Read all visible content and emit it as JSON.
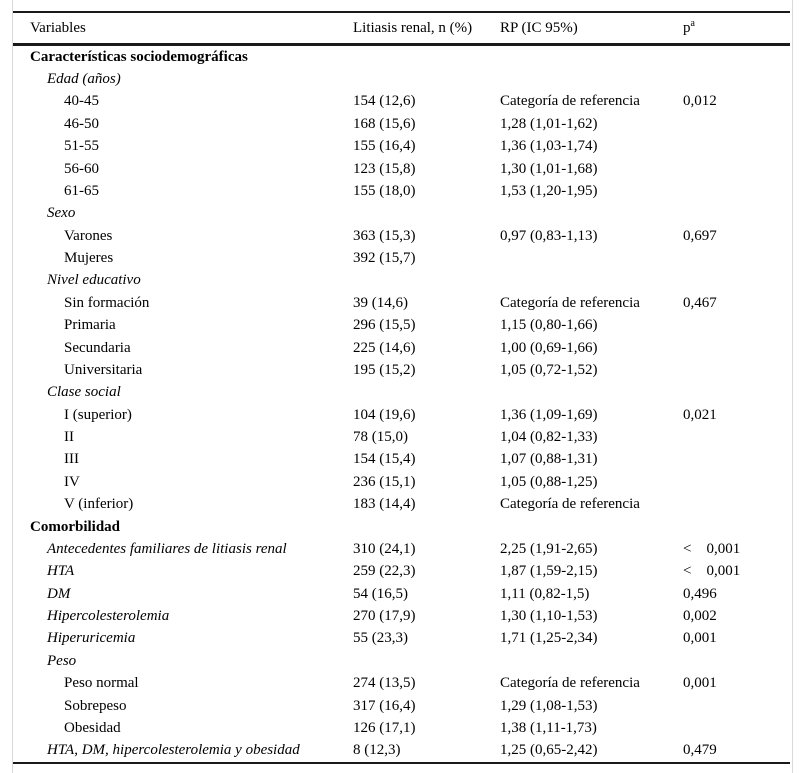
{
  "colors": {
    "text": "#000000",
    "rule": "#1a1a1a",
    "side_border": "#d9d9d9",
    "background": "#ffffff"
  },
  "table": {
    "columns": [
      "Variables",
      "Litiasis renal, n (%)",
      "RP (IC 95%)",
      "p"
    ],
    "p_superscript": "a",
    "reference_label": "Categoría de referencia",
    "rows": [
      {
        "label": "Características sociodemográficas",
        "indent": 0,
        "emphasis": "bold",
        "n": "",
        "rp": "",
        "p": ""
      },
      {
        "label": "Edad (años)",
        "indent": 1,
        "emphasis": "italic",
        "n": "",
        "rp": "",
        "p": ""
      },
      {
        "label": "40-45",
        "indent": 2,
        "emphasis": "none",
        "n": "154 (12,6)",
        "rp": "Categoría de referencia",
        "p": "0,012"
      },
      {
        "label": "46-50",
        "indent": 2,
        "emphasis": "none",
        "n": "168 (15,6)",
        "rp": "1,28 (1,01-1,62)",
        "p": ""
      },
      {
        "label": "51-55",
        "indent": 2,
        "emphasis": "none",
        "n": "155 (16,4)",
        "rp": "1,36 (1,03-1,74)",
        "p": ""
      },
      {
        "label": "56-60",
        "indent": 2,
        "emphasis": "none",
        "n": "123 (15,8)",
        "rp": "1,30 (1,01-1,68)",
        "p": ""
      },
      {
        "label": "61-65",
        "indent": 2,
        "emphasis": "none",
        "n": "155 (18,0)",
        "rp": "1,53 (1,20-1,95)",
        "p": ""
      },
      {
        "label": "Sexo",
        "indent": 1,
        "emphasis": "italic",
        "n": "",
        "rp": "",
        "p": ""
      },
      {
        "label": "Varones",
        "indent": 2,
        "emphasis": "none",
        "n": "363 (15,3)",
        "rp": "0,97 (0,83-1,13)",
        "p": "0,697"
      },
      {
        "label": "Mujeres",
        "indent": 2,
        "emphasis": "none",
        "n": "392 (15,7)",
        "rp": "",
        "p": ""
      },
      {
        "label": "Nivel educativo",
        "indent": 1,
        "emphasis": "italic",
        "n": "",
        "rp": "",
        "p": ""
      },
      {
        "label": "Sin formación",
        "indent": 2,
        "emphasis": "none",
        "n": "39 (14,6)",
        "rp": "Categoría de referencia",
        "p": "0,467"
      },
      {
        "label": "Primaria",
        "indent": 2,
        "emphasis": "none",
        "n": "296 (15,5)",
        "rp": "1,15 (0,80-1,66)",
        "p": ""
      },
      {
        "label": "Secundaria",
        "indent": 2,
        "emphasis": "none",
        "n": "225 (14,6)",
        "rp": "1,00 (0,69-1,66)",
        "p": ""
      },
      {
        "label": "Universitaria",
        "indent": 2,
        "emphasis": "none",
        "n": "195 (15,2)",
        "rp": "1,05 (0,72-1,52)",
        "p": ""
      },
      {
        "label": "Clase social",
        "indent": 1,
        "emphasis": "italic",
        "n": "",
        "rp": "",
        "p": ""
      },
      {
        "label": "I (superior)",
        "indent": 2,
        "emphasis": "none",
        "n": "104 (19,6)",
        "rp": "1,36 (1,09-1,69)",
        "p": "0,021"
      },
      {
        "label": "II",
        "indent": 2,
        "emphasis": "none",
        "n": "78 (15,0)",
        "rp": "1,04 (0,82-1,33)",
        "p": ""
      },
      {
        "label": "III",
        "indent": 2,
        "emphasis": "none",
        "n": "154 (15,4)",
        "rp": "1,07 (0,88-1,31)",
        "p": ""
      },
      {
        "label": "IV",
        "indent": 2,
        "emphasis": "none",
        "n": "236 (15,1)",
        "rp": "1,05 (0,88-1,25)",
        "p": ""
      },
      {
        "label": "V (inferior)",
        "indent": 2,
        "emphasis": "none",
        "n": "183 (14,4)",
        "rp": "Categoría de referencia",
        "p": ""
      },
      {
        "label": "Comorbilidad",
        "indent": 0,
        "emphasis": "bold",
        "n": "",
        "rp": "",
        "p": ""
      },
      {
        "label": "Antecedentes familiares de litiasis renal",
        "indent": 1,
        "emphasis": "italic",
        "n": "310 (24,1)",
        "rp": "2,25 (1,91-2,65)",
        "p": "< 0,001"
      },
      {
        "label": "HTA",
        "indent": 1,
        "emphasis": "italic",
        "n": "259 (22,3)",
        "rp": "1,87 (1,59-2,15)",
        "p": "< 0,001"
      },
      {
        "label": "DM",
        "indent": 1,
        "emphasis": "italic",
        "n": "54 (16,5)",
        "rp": "1,11 (0,82-1,5)",
        "p": "0,496"
      },
      {
        "label": "Hipercolesterolemia",
        "indent": 1,
        "emphasis": "italic",
        "n": "270 (17,9)",
        "rp": "1,30 (1,10-1,53)",
        "p": "0,002"
      },
      {
        "label": "Hiperuricemia",
        "indent": 1,
        "emphasis": "italic",
        "n": "55 (23,3)",
        "rp": "1,71 (1,25-2,34)",
        "p": "0,001"
      },
      {
        "label": "Peso",
        "indent": 1,
        "emphasis": "italic",
        "n": "",
        "rp": "",
        "p": ""
      },
      {
        "label": "Peso normal",
        "indent": 2,
        "emphasis": "none",
        "n": "274 (13,5)",
        "rp": "Categoría de referencia",
        "p": "0,001"
      },
      {
        "label": "Sobrepeso",
        "indent": 2,
        "emphasis": "none",
        "n": "317 (16,4)",
        "rp": "1,29 (1,08-1,53)",
        "p": ""
      },
      {
        "label": "Obesidad",
        "indent": 2,
        "emphasis": "none",
        "n": "126 (17,1)",
        "rp": "1,38 (1,11-1,73)",
        "p": ""
      },
      {
        "label": "HTA, DM, hipercolesterolemia y obesidad",
        "indent": 1,
        "emphasis": "italic",
        "n": "8 (12,3)",
        "rp": "1,25 (0,65-2,42)",
        "p": "0,479"
      }
    ]
  }
}
